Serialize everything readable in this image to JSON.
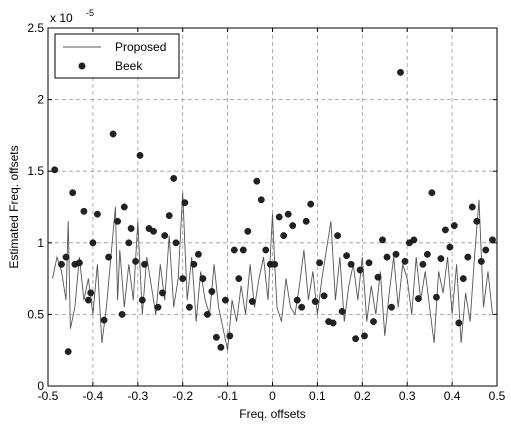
{
  "chart_data": {
    "type": "scatter",
    "xlabel": "Freq. offsets",
    "ylabel": "Estimated Freq. offsets",
    "y_exponent_label": "x 10",
    "y_exponent_power": "-5",
    "xlim": [
      -0.5,
      0.5
    ],
    "ylim": [
      0,
      2.5
    ],
    "x_ticks": [
      -0.5,
      -0.4,
      -0.3,
      -0.2,
      -0.1,
      0,
      0.1,
      0.2,
      0.3,
      0.4,
      0.5
    ],
    "x_tick_labels": [
      "-0.5",
      "-0.4",
      "-0.3",
      "-0.2",
      "-0.1",
      "0",
      "0.1",
      "0.2",
      "0.3",
      "0.4",
      "0.5"
    ],
    "y_ticks": [
      0,
      0.5,
      1,
      1.5,
      2,
      2.5
    ],
    "y_tick_labels": [
      "0",
      "0.5",
      "1",
      "1.5",
      "2",
      "2.5"
    ],
    "grid": true,
    "legend_position": "top-left",
    "series": [
      {
        "name": "Proposed",
        "style": "line",
        "color": "#555555",
        "x": [
          -0.49,
          -0.48,
          -0.47,
          -0.46,
          -0.455,
          -0.45,
          -0.44,
          -0.43,
          -0.42,
          -0.41,
          -0.4,
          -0.39,
          -0.38,
          -0.37,
          -0.36,
          -0.35,
          -0.345,
          -0.34,
          -0.33,
          -0.32,
          -0.31,
          -0.3,
          -0.29,
          -0.28,
          -0.27,
          -0.26,
          -0.25,
          -0.24,
          -0.23,
          -0.22,
          -0.21,
          -0.2,
          -0.19,
          -0.18,
          -0.17,
          -0.16,
          -0.15,
          -0.14,
          -0.13,
          -0.12,
          -0.11,
          -0.1,
          -0.09,
          -0.08,
          -0.07,
          -0.06,
          -0.05,
          -0.04,
          -0.03,
          -0.02,
          -0.01,
          0.0,
          0.005,
          0.01,
          0.02,
          0.03,
          0.04,
          0.05,
          0.06,
          0.07,
          0.08,
          0.09,
          0.1,
          0.11,
          0.12,
          0.13,
          0.14,
          0.15,
          0.16,
          0.17,
          0.18,
          0.19,
          0.2,
          0.21,
          0.22,
          0.23,
          0.24,
          0.25,
          0.26,
          0.27,
          0.28,
          0.29,
          0.3,
          0.31,
          0.32,
          0.33,
          0.34,
          0.35,
          0.36,
          0.37,
          0.38,
          0.39,
          0.4,
          0.41,
          0.42,
          0.43,
          0.44,
          0.45,
          0.46,
          0.47,
          0.48,
          0.49
        ],
        "y": [
          0.75,
          0.9,
          0.8,
          0.6,
          1.15,
          0.4,
          0.55,
          0.9,
          0.6,
          0.75,
          0.5,
          0.85,
          0.3,
          0.55,
          0.9,
          1.25,
          0.6,
          0.95,
          0.55,
          0.85,
          0.6,
          1.15,
          0.5,
          0.9,
          0.7,
          0.5,
          0.85,
          0.6,
          1.05,
          0.55,
          0.75,
          1.35,
          0.6,
          0.9,
          0.45,
          0.8,
          0.6,
          0.5,
          0.85,
          0.55,
          0.4,
          0.25,
          0.6,
          0.45,
          0.7,
          0.5,
          0.85,
          0.55,
          0.75,
          0.9,
          0.6,
          1.2,
          0.85,
          0.55,
          0.45,
          0.75,
          0.55,
          0.5,
          0.7,
          0.95,
          0.6,
          0.8,
          0.5,
          0.75,
          0.95,
          1.15,
          0.6,
          0.9,
          0.45,
          0.7,
          0.85,
          0.6,
          0.9,
          0.45,
          0.7,
          0.5,
          0.8,
          0.35,
          0.65,
          0.9,
          0.55,
          0.85,
          0.75,
          0.5,
          0.9,
          0.6,
          0.8,
          0.55,
          0.3,
          0.8,
          0.65,
          0.9,
          0.5,
          0.85,
          0.3,
          0.65,
          0.45,
          0.9,
          1.3,
          0.55,
          0.8,
          0.5
        ]
      },
      {
        "name": "Beek",
        "style": "markers",
        "color": "#222222",
        "x": [
          -0.485,
          -0.47,
          -0.46,
          -0.455,
          -0.445,
          -0.44,
          -0.43,
          -0.42,
          -0.41,
          -0.405,
          -0.4,
          -0.39,
          -0.375,
          -0.365,
          -0.355,
          -0.345,
          -0.335,
          -0.33,
          -0.32,
          -0.315,
          -0.305,
          -0.295,
          -0.29,
          -0.285,
          -0.275,
          -0.265,
          -0.255,
          -0.245,
          -0.24,
          -0.23,
          -0.22,
          -0.215,
          -0.2,
          -0.195,
          -0.185,
          -0.175,
          -0.165,
          -0.155,
          -0.145,
          -0.135,
          -0.125,
          -0.115,
          -0.105,
          -0.095,
          -0.085,
          -0.075,
          -0.065,
          -0.055,
          -0.045,
          -0.035,
          -0.025,
          -0.015,
          -0.005,
          0.005,
          0.015,
          0.025,
          0.035,
          0.045,
          0.055,
          0.065,
          0.075,
          0.085,
          0.095,
          0.105,
          0.115,
          0.125,
          0.135,
          0.145,
          0.155,
          0.165,
          0.175,
          0.185,
          0.195,
          0.205,
          0.215,
          0.225,
          0.235,
          0.245,
          0.255,
          0.265,
          0.275,
          0.285,
          0.295,
          0.305,
          0.315,
          0.325,
          0.335,
          0.345,
          0.355,
          0.365,
          0.375,
          0.385,
          0.395,
          0.405,
          0.415,
          0.425,
          0.435,
          0.445,
          0.455,
          0.465,
          0.475,
          0.49
        ],
        "y": [
          1.51,
          0.85,
          0.9,
          0.24,
          1.35,
          0.85,
          0.86,
          1.22,
          0.6,
          0.65,
          1.0,
          1.2,
          0.46,
          0.9,
          1.76,
          1.15,
          0.5,
          1.25,
          1.0,
          1.1,
          0.87,
          1.61,
          0.6,
          0.85,
          1.1,
          1.08,
          0.55,
          0.65,
          1.05,
          1.19,
          1.45,
          1.0,
          0.75,
          1.28,
          0.55,
          0.85,
          0.92,
          0.75,
          0.5,
          0.66,
          0.34,
          0.27,
          0.6,
          0.35,
          0.95,
          0.75,
          0.95,
          1.08,
          0.59,
          1.43,
          1.3,
          0.95,
          0.85,
          0.85,
          1.18,
          1.05,
          1.2,
          1.12,
          0.6,
          0.55,
          1.15,
          1.27,
          0.59,
          0.86,
          0.63,
          0.45,
          0.44,
          1.05,
          0.52,
          0.91,
          0.85,
          0.33,
          0.81,
          0.35,
          0.86,
          0.45,
          0.76,
          1.02,
          0.9,
          0.55,
          0.92,
          2.19,
          0.87,
          1.0,
          1.02,
          0.61,
          0.85,
          0.92,
          1.35,
          0.62,
          0.89,
          1.09,
          0.97,
          1.12,
          0.44,
          0.75,
          0.9,
          1.25,
          1.15,
          0.87,
          0.95,
          1.02
        ]
      }
    ]
  }
}
